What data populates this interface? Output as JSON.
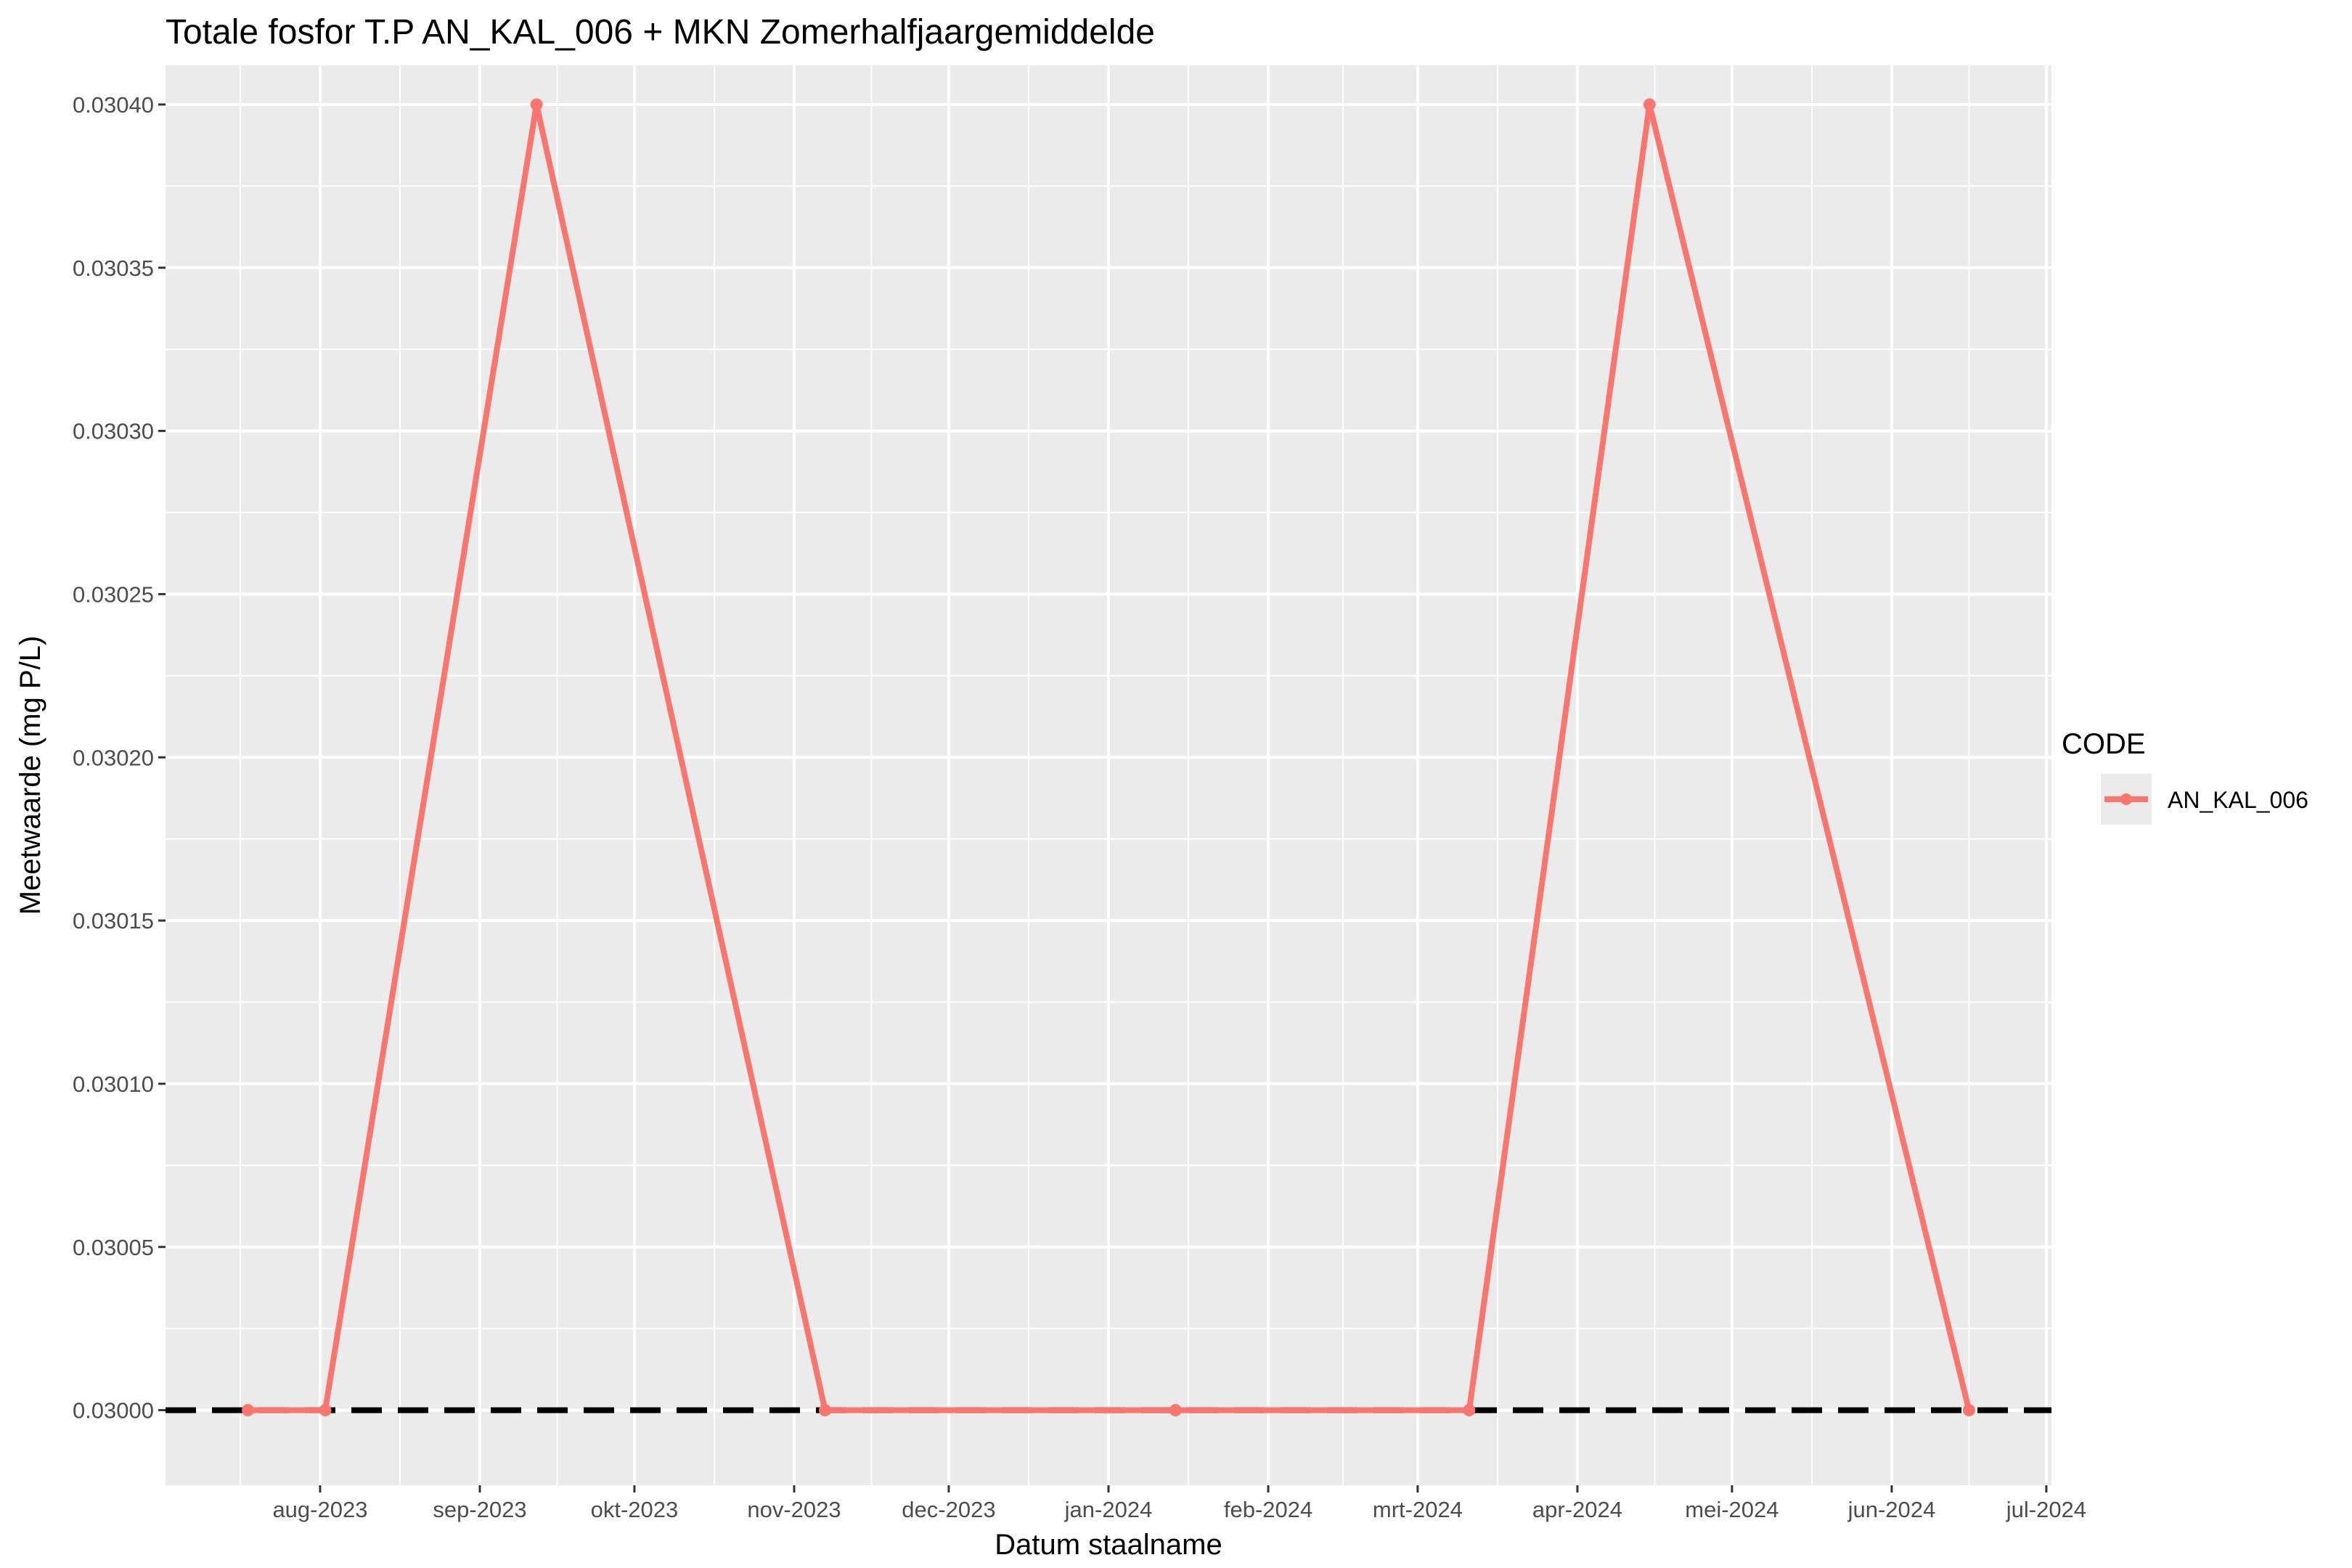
{
  "chart_data": {
    "type": "line",
    "title": "Totale fosfor T.P AN_KAL_006 + MKN Zomerhalfjaargemiddelde",
    "xlabel": "Datum staalname",
    "ylabel": "Meetwaarde (mg P/L)",
    "xlim": [
      "2023-07-02",
      "2024-07-02"
    ],
    "ylim": [
      0.029977,
      0.030412
    ],
    "x_ticks": [
      {
        "date": "2023-08-01",
        "label": "aug-2023"
      },
      {
        "date": "2023-09-01",
        "label": "sep-2023"
      },
      {
        "date": "2023-10-01",
        "label": "okt-2023"
      },
      {
        "date": "2023-11-01",
        "label": "nov-2023"
      },
      {
        "date": "2023-12-01",
        "label": "dec-2023"
      },
      {
        "date": "2024-01-01",
        "label": "jan-2024"
      },
      {
        "date": "2024-02-01",
        "label": "feb-2024"
      },
      {
        "date": "2024-03-01",
        "label": "mrt-2024"
      },
      {
        "date": "2024-04-01",
        "label": "apr-2024"
      },
      {
        "date": "2024-05-01",
        "label": "mei-2024"
      },
      {
        "date": "2024-06-01",
        "label": "jun-2024"
      },
      {
        "date": "2024-07-01",
        "label": "jul-2024"
      }
    ],
    "y_ticks": [
      {
        "value": 0.03,
        "label": "0.03000"
      },
      {
        "value": 0.03005,
        "label": "0.03005"
      },
      {
        "value": 0.0301,
        "label": "0.03010"
      },
      {
        "value": 0.03015,
        "label": "0.03015"
      },
      {
        "value": 0.0302,
        "label": "0.03020"
      },
      {
        "value": 0.03025,
        "label": "0.03025"
      },
      {
        "value": 0.0303,
        "label": "0.03030"
      },
      {
        "value": 0.03035,
        "label": "0.03035"
      },
      {
        "value": 0.0304,
        "label": "0.03040"
      }
    ],
    "series": [
      {
        "name": "AN_KAL_006",
        "color": "#f8766d",
        "points": [
          {
            "x": "2023-07-18",
            "y": 0.03
          },
          {
            "x": "2023-08-02",
            "y": 0.03
          },
          {
            "x": "2023-09-12",
            "y": 0.0304
          },
          {
            "x": "2023-11-07",
            "y": 0.03
          },
          {
            "x": "2024-01-14",
            "y": 0.03
          },
          {
            "x": "2024-03-11",
            "y": 0.03
          },
          {
            "x": "2024-04-15",
            "y": 0.0304
          },
          {
            "x": "2024-06-16",
            "y": 0.03
          }
        ]
      }
    ],
    "reference_line": {
      "y": 0.03,
      "style": "dashed",
      "color": "#000000"
    },
    "legend": {
      "title": "CODE",
      "position": "right"
    },
    "grid": true,
    "panel_background": "#ebebeb",
    "grid_color": "#ffffff"
  }
}
